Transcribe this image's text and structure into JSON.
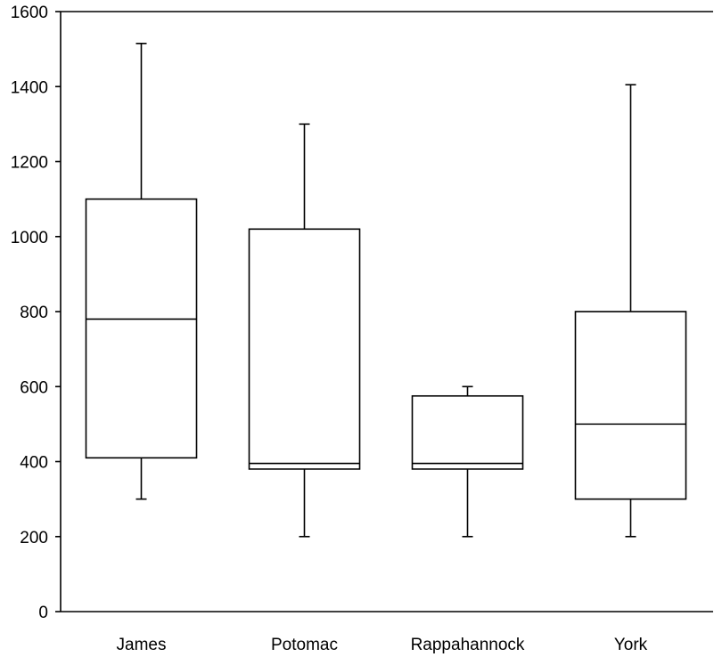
{
  "chart_data": {
    "type": "boxplot",
    "title": "",
    "xlabel": "",
    "ylabel": "",
    "ylim": [
      0,
      1600
    ],
    "yticks": [
      0,
      200,
      400,
      600,
      800,
      1000,
      1200,
      1400,
      1600
    ],
    "grid": false,
    "legend": "none",
    "categories": [
      "James",
      "Potomac",
      "Rappahannock",
      "York"
    ],
    "boxes": [
      {
        "label": "James",
        "min": 300,
        "q1": 410,
        "median": 780,
        "q3": 1100,
        "max": 1515
      },
      {
        "label": "Potomac",
        "min": 200,
        "q1": 380,
        "median": 395,
        "q3": 1020,
        "max": 1300
      },
      {
        "label": "Rappahannock",
        "min": 200,
        "q1": 380,
        "median": 395,
        "q3": 575,
        "max": 600
      },
      {
        "label": "York",
        "min": 200,
        "q1": 300,
        "median": 500,
        "q3": 800,
        "max": 1405
      }
    ],
    "colors": {
      "stroke": "#000000",
      "fill": "#ffffff"
    }
  }
}
